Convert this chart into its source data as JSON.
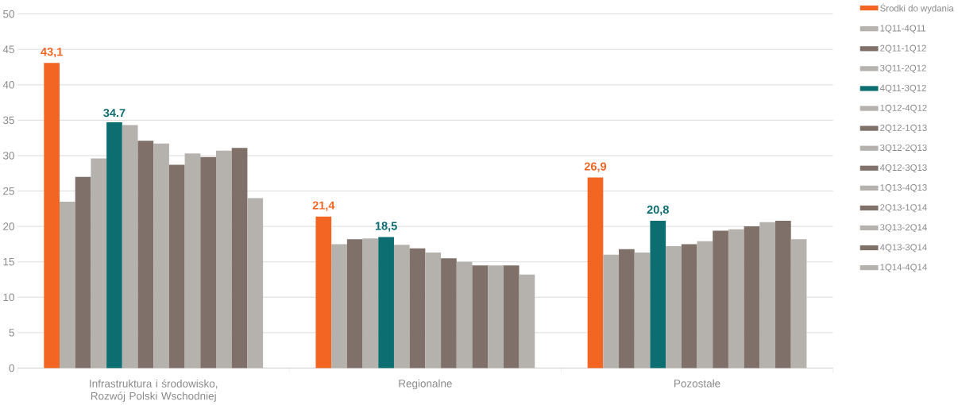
{
  "chart_data": {
    "type": "bar",
    "categories": [
      "Infrastruktura i środowisko, Rozwój Polski Wschodniej",
      "Regionalne",
      "Pozostałe"
    ],
    "series": [
      {
        "name": "Środki do wydania",
        "color": "#f26522",
        "values": [
          43.1,
          21.4,
          26.9
        ],
        "value_labels": [
          "43,1",
          "21,4",
          "26,9"
        ]
      },
      {
        "name": "1Q11-4Q11",
        "color": "#b5b1ac",
        "values": [
          23.5,
          17.5,
          16.0
        ]
      },
      {
        "name": "2Q11-1Q12",
        "color": "#7f7169",
        "values": [
          27.0,
          18.2,
          16.8
        ]
      },
      {
        "name": "3Q11-2Q12",
        "color": "#b5b1ac",
        "values": [
          29.6,
          18.3,
          16.3
        ]
      },
      {
        "name": "4Q11-3Q12",
        "color": "#0d6e72",
        "values": [
          34.7,
          18.5,
          20.8
        ],
        "value_labels": [
          "34.7",
          "18,5",
          "20,8"
        ]
      },
      {
        "name": "1Q12-4Q12",
        "color": "#b5b1ac",
        "values": [
          34.3,
          17.4,
          17.2
        ]
      },
      {
        "name": "2Q12-1Q13",
        "color": "#7f7169",
        "values": [
          32.1,
          16.9,
          17.5
        ]
      },
      {
        "name": "3Q12-2Q13",
        "color": "#b5b1ac",
        "values": [
          31.7,
          16.3,
          17.9
        ]
      },
      {
        "name": "4Q12-3Q13",
        "color": "#7f7169",
        "values": [
          28.7,
          15.5,
          19.4
        ]
      },
      {
        "name": "1Q13-4Q13",
        "color": "#b5b1ac",
        "values": [
          30.3,
          15.0,
          19.6
        ]
      },
      {
        "name": "2Q13-1Q14",
        "color": "#7f7169",
        "values": [
          29.8,
          14.5,
          20.0
        ]
      },
      {
        "name": "3Q13-2Q14",
        "color": "#b5b1ac",
        "values": [
          30.7,
          14.5,
          20.6
        ]
      },
      {
        "name": "4Q13-3Q14",
        "color": "#7f7169",
        "values": [
          31.1,
          14.5,
          20.8
        ]
      },
      {
        "name": "1Q14-4Q14",
        "color": "#b5b1ac",
        "values": [
          24.0,
          13.2,
          18.2
        ]
      }
    ],
    "ylim": [
      0,
      50
    ],
    "yticks": [
      0,
      5,
      10,
      15,
      20,
      25,
      30,
      35,
      40,
      45,
      50
    ],
    "grid": "y",
    "legend": "right"
  }
}
